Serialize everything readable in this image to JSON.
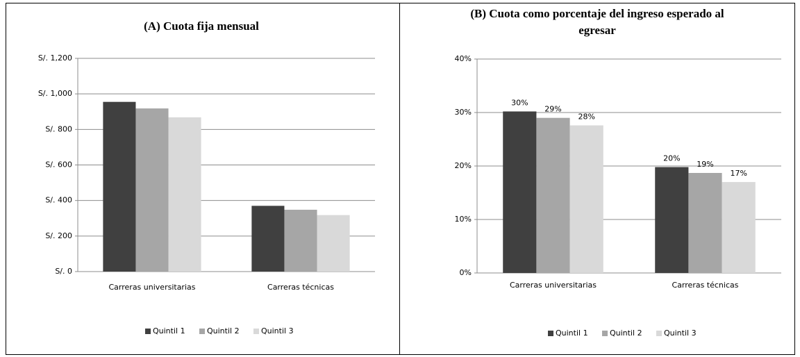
{
  "chart_data": [
    {
      "type": "bar",
      "title": "(A) Cuota fija mensual",
      "categories": [
        "Carreras universitarias",
        "Carreras técnicas"
      ],
      "series": [
        {
          "name": "Quintil 1",
          "color": "#404040",
          "values": [
            955,
            370
          ]
        },
        {
          "name": "Quintil 2",
          "color": "#a6a6a6",
          "values": [
            918,
            348
          ]
        },
        {
          "name": "Quintil 3",
          "color": "#d9d9d9",
          "values": [
            868,
            318
          ]
        }
      ],
      "ylim": [
        0,
        1200
      ],
      "yticks": [
        {
          "value": 0,
          "label": "S/. 0"
        },
        {
          "value": 200,
          "label": "S/. 200"
        },
        {
          "value": 400,
          "label": "S/. 400"
        },
        {
          "value": 600,
          "label": "S/. 600"
        },
        {
          "value": 800,
          "label": "S/. 800"
        },
        {
          "value": 1000,
          "label": "S/. 1,000"
        },
        {
          "value": 1200,
          "label": "S/. 1,200"
        }
      ],
      "grid": true,
      "legend": "bottom"
    },
    {
      "type": "bar",
      "title": "(B) Cuota como porcentaje del ingreso esperado al egresar",
      "categories": [
        "Carreras universitarias",
        "Carreras técnicas"
      ],
      "series": [
        {
          "name": "Quintil 1",
          "color": "#404040",
          "values": [
            30.2,
            19.8
          ],
          "value_labels": [
            "30%",
            "20%"
          ]
        },
        {
          "name": "Quintil 2",
          "color": "#a6a6a6",
          "values": [
            29,
            18.7
          ],
          "value_labels": [
            "29%",
            "19%"
          ]
        },
        {
          "name": "Quintil 3",
          "color": "#d9d9d9",
          "values": [
            27.6,
            17
          ],
          "value_labels": [
            "28%",
            "17%"
          ]
        }
      ],
      "ylim": [
        0,
        40
      ],
      "yticks": [
        {
          "value": 0,
          "label": "0%"
        },
        {
          "value": 10,
          "label": "10%"
        },
        {
          "value": 20,
          "label": "20%"
        },
        {
          "value": 30,
          "label": "30%"
        },
        {
          "value": 40,
          "label": "40%"
        }
      ],
      "grid": true,
      "legend": "bottom"
    }
  ]
}
